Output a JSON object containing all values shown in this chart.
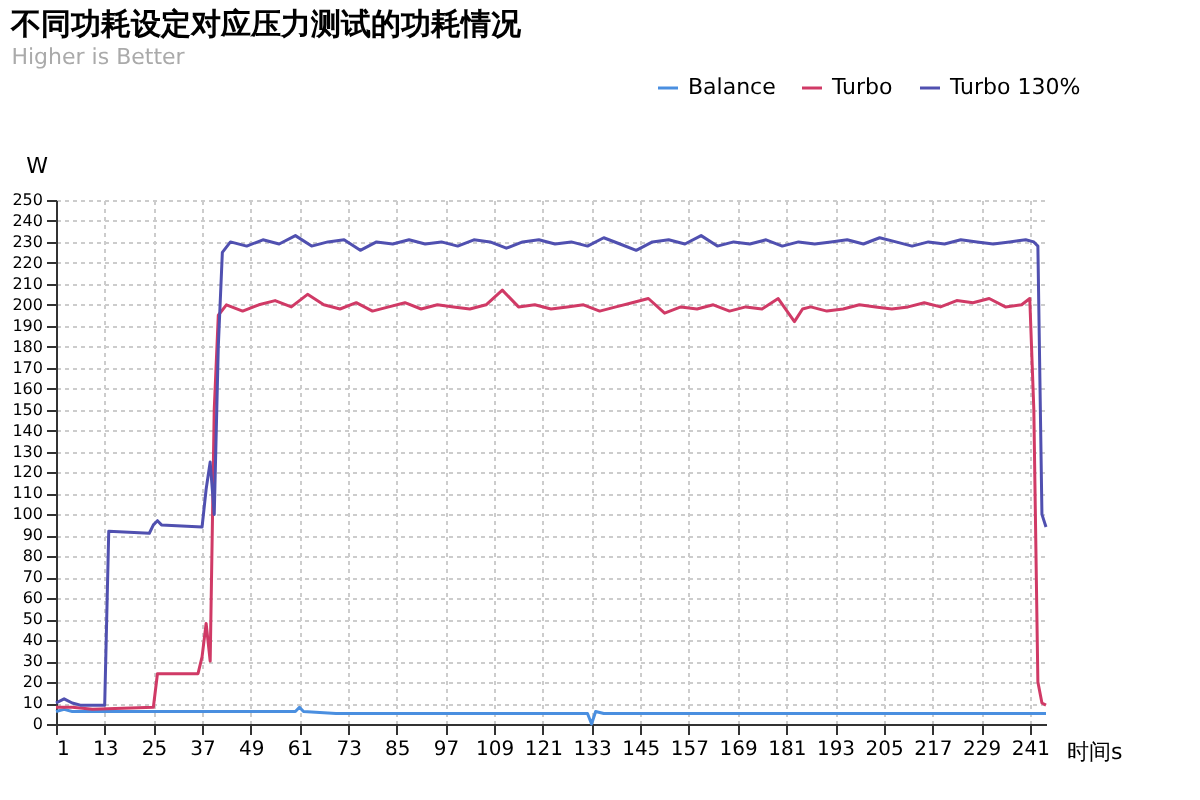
{
  "chart_data": {
    "type": "line",
    "title": "不同功耗设定对应压力测试的功耗情况",
    "subtitle": "Higher is Better",
    "xlabel": "时间s",
    "ylabel": "W",
    "xlim": [
      1,
      245
    ],
    "xticks": [
      1,
      13,
      25,
      37,
      49,
      61,
      73,
      85,
      97,
      109,
      121,
      133,
      145,
      157,
      169,
      181,
      193,
      205,
      217,
      229,
      241
    ],
    "ylim": [
      0,
      250
    ],
    "yticks": [
      0,
      10,
      20,
      30,
      40,
      50,
      60,
      70,
      80,
      90,
      100,
      110,
      120,
      130,
      140,
      150,
      160,
      170,
      180,
      190,
      200,
      210,
      220,
      230,
      240,
      250
    ],
    "grid": true,
    "legend": "top right",
    "marker": "none",
    "line_style": "solid",
    "series": [
      {
        "name": "Balance",
        "color": "#4a8fe0",
        "x": [
          1,
          3,
          5,
          10,
          20,
          40,
          55,
          60,
          61,
          62,
          70,
          100,
          130,
          132,
          133,
          134,
          136,
          150,
          180,
          210,
          240,
          245
        ],
        "values": [
          6,
          7,
          6,
          6,
          6,
          6,
          6,
          6,
          8,
          6,
          5,
          5,
          5,
          5,
          0,
          6,
          5,
          5,
          5,
          5,
          5,
          5
        ]
      },
      {
        "name": "Turbo",
        "color": "#d03a66",
        "x": [
          1,
          5,
          10,
          25,
          26,
          30,
          36,
          37,
          38,
          39,
          40,
          41,
          43,
          47,
          51,
          55,
          59,
          63,
          67,
          71,
          75,
          79,
          83,
          87,
          91,
          95,
          99,
          103,
          107,
          111,
          115,
          119,
          123,
          127,
          131,
          135,
          139,
          143,
          147,
          151,
          155,
          159,
          163,
          167,
          171,
          175,
          179,
          183,
          185,
          187,
          191,
          195,
          199,
          203,
          207,
          211,
          215,
          219,
          223,
          227,
          231,
          235,
          239,
          241,
          242,
          243,
          244,
          245
        ],
        "values": [
          8,
          8,
          7,
          8,
          24,
          24,
          24,
          32,
          48,
          30,
          150,
          195,
          200,
          197,
          200,
          202,
          199,
          205,
          200,
          198,
          201,
          197,
          199,
          201,
          198,
          200,
          199,
          198,
          200,
          207,
          199,
          200,
          198,
          199,
          200,
          197,
          199,
          201,
          203,
          196,
          199,
          198,
          200,
          197,
          199,
          198,
          203,
          192,
          198,
          199,
          197,
          198,
          200,
          199,
          198,
          199,
          201,
          199,
          202,
          201,
          203,
          199,
          200,
          203,
          150,
          20,
          10,
          9
        ]
      },
      {
        "name": "Turbo 130%",
        "color": "#5050b0",
        "x": [
          1,
          3,
          5,
          7,
          13,
          14,
          24,
          25,
          26,
          27,
          37,
          38,
          39,
          40,
          41,
          42,
          44,
          48,
          52,
          56,
          60,
          64,
          68,
          72,
          76,
          80,
          84,
          88,
          92,
          96,
          100,
          104,
          108,
          112,
          116,
          120,
          124,
          128,
          132,
          136,
          140,
          144,
          148,
          152,
          156,
          160,
          164,
          168,
          172,
          176,
          180,
          184,
          188,
          192,
          196,
          200,
          204,
          208,
          212,
          216,
          220,
          224,
          228,
          232,
          236,
          240,
          242,
          243,
          244,
          245
        ],
        "values": [
          10,
          12,
          10,
          9,
          9,
          92,
          91,
          95,
          97,
          95,
          94,
          112,
          125,
          100,
          180,
          225,
          230,
          228,
          231,
          229,
          233,
          228,
          230,
          231,
          226,
          230,
          229,
          231,
          229,
          230,
          228,
          231,
          230,
          227,
          230,
          231,
          229,
          230,
          228,
          232,
          229,
          226,
          230,
          231,
          229,
          233,
          228,
          230,
          229,
          231,
          228,
          230,
          229,
          230,
          231,
          229,
          232,
          230,
          228,
          230,
          229,
          231,
          230,
          229,
          230,
          231,
          230,
          228,
          100,
          94
        ]
      }
    ]
  }
}
